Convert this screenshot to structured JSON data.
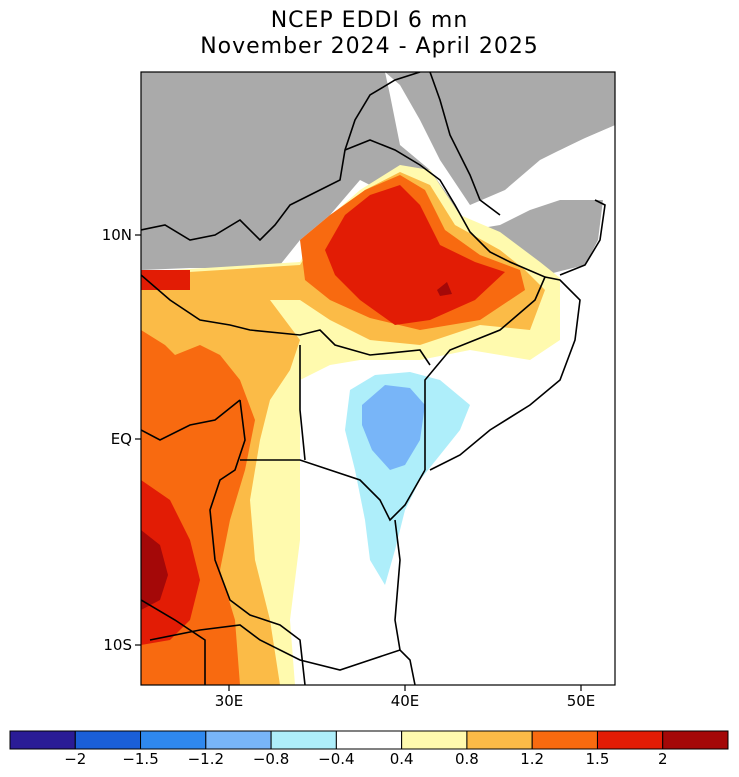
{
  "title": {
    "line1": "NCEP EDDI 6 mn",
    "line2": "November 2024 - April 2025"
  },
  "map": {
    "lat_labels": [
      "10N",
      "EQ",
      "10S"
    ],
    "lon_labels": [
      "30E",
      "40E",
      "50E"
    ],
    "no_data_color": "#aaaaaa",
    "ocean_color": "#ffffff"
  },
  "colorbar": {
    "colors": [
      "#2a1c96",
      "#1a5fd8",
      "#2f88ee",
      "#78b5f8",
      "#aeeefa",
      "#ffffff",
      "#fffaae",
      "#fbbb47",
      "#f86a10",
      "#e21c05",
      "#a40808"
    ],
    "labels": [
      "-2",
      "-1.5",
      "-1.2",
      "-0.8",
      "-0.4",
      "0.4",
      "0.8",
      "1.2",
      "1.5",
      "2"
    ]
  }
}
